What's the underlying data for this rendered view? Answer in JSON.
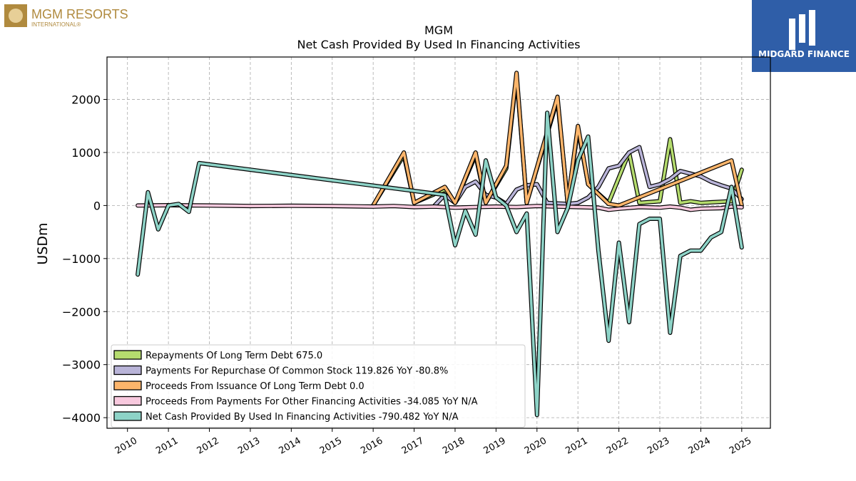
{
  "brand_left": {
    "name": "MGM RESORTS",
    "sub": "INTERNATIONAL®",
    "color": "#b08a3e"
  },
  "brand_right": {
    "name": "MIDGARD FINANCE",
    "bg": "#2f5ea8"
  },
  "chart_data": {
    "type": "line",
    "title": "MGM",
    "subtitle": "Net Cash Provided By Used In Financing Activities",
    "ylabel": "USDm",
    "xlabel": "",
    "xlim": [
      2009.5,
      2025.7
    ],
    "ylim": [
      -4200,
      2800
    ],
    "yticks": [
      -4000,
      -3000,
      -2000,
      -1000,
      0,
      1000,
      2000
    ],
    "ytick_labels": [
      "−4000",
      "−3000",
      "−2000",
      "−1000",
      "0",
      "1000",
      "2000"
    ],
    "xticks": [
      2010,
      2011,
      2012,
      2013,
      2014,
      2015,
      2016,
      2017,
      2018,
      2019,
      2020,
      2021,
      2022,
      2023,
      2024,
      2025
    ],
    "xtick_labels": [
      "2010",
      "2011",
      "2012",
      "2013",
      "2014",
      "2015",
      "2016",
      "2017",
      "2018",
      "2019",
      "2020",
      "2021",
      "2022",
      "2023",
      "2024",
      "2025"
    ],
    "grid": true,
    "legend_position": "bottom-left",
    "series": [
      {
        "name": "Repayments Of Long Term Debt",
        "legend_label": "Repayments Of Long Term Debt  675.0",
        "color": "#b5dc6e",
        "points": [
          [
            2016.0,
            0
          ],
          [
            2016.75,
            950
          ],
          [
            2017.0,
            50
          ],
          [
            2017.75,
            300
          ],
          [
            2018.0,
            50
          ],
          [
            2018.5,
            950
          ],
          [
            2018.75,
            50
          ],
          [
            2019.25,
            700
          ],
          [
            2019.5,
            2450
          ],
          [
            2019.75,
            50
          ],
          [
            2020.5,
            2000
          ],
          [
            2020.75,
            50
          ],
          [
            2021.0,
            1450
          ],
          [
            2021.25,
            400
          ],
          [
            2021.75,
            50
          ],
          [
            2022.25,
            1000
          ],
          [
            2022.5,
            50
          ],
          [
            2023.0,
            80
          ],
          [
            2023.25,
            1250
          ],
          [
            2023.5,
            50
          ],
          [
            2023.75,
            80
          ],
          [
            2024.0,
            50
          ],
          [
            2024.25,
            60
          ],
          [
            2024.75,
            80
          ],
          [
            2025.0,
            675
          ]
        ]
      },
      {
        "name": "Payments For Repurchase Of Common Stock",
        "legend_label": "Payments For Repurchase Of Common Stock  119.826 YoY -80.8%",
        "color": "#b9b4d8",
        "points": [
          [
            2017.5,
            0
          ],
          [
            2017.75,
            200
          ],
          [
            2018.0,
            50
          ],
          [
            2018.25,
            350
          ],
          [
            2018.5,
            450
          ],
          [
            2018.75,
            200
          ],
          [
            2019.0,
            150
          ],
          [
            2019.25,
            30
          ],
          [
            2019.5,
            300
          ],
          [
            2019.75,
            380
          ],
          [
            2020.0,
            400
          ],
          [
            2020.25,
            50
          ],
          [
            2020.75,
            30
          ],
          [
            2021.0,
            50
          ],
          [
            2021.25,
            150
          ],
          [
            2021.5,
            350
          ],
          [
            2021.75,
            700
          ],
          [
            2022.0,
            750
          ],
          [
            2022.25,
            1000
          ],
          [
            2022.5,
            1100
          ],
          [
            2022.75,
            350
          ],
          [
            2023.0,
            400
          ],
          [
            2023.25,
            500
          ],
          [
            2023.5,
            650
          ],
          [
            2023.75,
            600
          ],
          [
            2024.0,
            550
          ],
          [
            2024.25,
            450
          ],
          [
            2024.5,
            380
          ],
          [
            2024.75,
            320
          ],
          [
            2025.0,
            120
          ]
        ]
      },
      {
        "name": "Proceeds From Issuance Of Long Term Debt",
        "legend_label": "Proceeds From Issuance Of Long Term Debt  0.0",
        "color": "#fcb56b",
        "points": [
          [
            2016.0,
            0
          ],
          [
            2016.75,
            1000
          ],
          [
            2017.0,
            50
          ],
          [
            2017.75,
            350
          ],
          [
            2018.0,
            50
          ],
          [
            2018.5,
            1000
          ],
          [
            2018.75,
            50
          ],
          [
            2019.25,
            750
          ],
          [
            2019.5,
            2500
          ],
          [
            2019.75,
            50
          ],
          [
            2020.5,
            2050
          ],
          [
            2020.75,
            50
          ],
          [
            2021.0,
            1500
          ],
          [
            2021.25,
            400
          ],
          [
            2021.75,
            30
          ],
          [
            2022.0,
            0
          ],
          [
            2024.75,
            850
          ],
          [
            2025.0,
            0
          ]
        ]
      },
      {
        "name": "Proceeds From Payments For Other Financing Activities",
        "legend_label": "Proceeds From Payments For Other Financing Activities  -34.085 YoY N/A",
        "color": "#f8c9de",
        "points": [
          [
            2010.25,
            0
          ],
          [
            2011.0,
            5
          ],
          [
            2012.0,
            0
          ],
          [
            2013.0,
            -10
          ],
          [
            2014.0,
            -5
          ],
          [
            2015.0,
            -10
          ],
          [
            2016.0,
            -20
          ],
          [
            2016.5,
            -10
          ],
          [
            2017.0,
            -30
          ],
          [
            2017.5,
            -20
          ],
          [
            2018.0,
            -40
          ],
          [
            2018.5,
            -30
          ],
          [
            2019.0,
            -20
          ],
          [
            2019.5,
            -30
          ],
          [
            2020.0,
            -10
          ],
          [
            2020.5,
            -20
          ],
          [
            2021.0,
            -30
          ],
          [
            2021.5,
            -40
          ],
          [
            2021.75,
            -80
          ],
          [
            2022.0,
            -60
          ],
          [
            2022.5,
            -30
          ],
          [
            2023.0,
            -40
          ],
          [
            2023.25,
            -20
          ],
          [
            2023.5,
            -40
          ],
          [
            2023.75,
            -80
          ],
          [
            2024.0,
            -60
          ],
          [
            2024.5,
            -50
          ],
          [
            2024.75,
            -20
          ],
          [
            2025.0,
            -34
          ]
        ]
      },
      {
        "name": "Net Cash Provided By Used In Financing Activities",
        "legend_label": "Net Cash Provided By Used In Financing Activities  -790.482 YoY N/A",
        "color": "#8dd3c7",
        "points": [
          [
            2010.25,
            -1300
          ],
          [
            2010.5,
            250
          ],
          [
            2010.75,
            -450
          ],
          [
            2011.0,
            0
          ],
          [
            2011.25,
            30
          ],
          [
            2011.5,
            -120
          ],
          [
            2011.75,
            800
          ],
          [
            2017.75,
            200
          ],
          [
            2018.0,
            -750
          ],
          [
            2018.25,
            -100
          ],
          [
            2018.5,
            -550
          ],
          [
            2018.75,
            850
          ],
          [
            2019.0,
            150
          ],
          [
            2019.25,
            0
          ],
          [
            2019.5,
            -500
          ],
          [
            2019.75,
            -150
          ],
          [
            2020.0,
            -3950
          ],
          [
            2020.25,
            1750
          ],
          [
            2020.5,
            -500
          ],
          [
            2020.75,
            -50
          ],
          [
            2021.0,
            850
          ],
          [
            2021.25,
            1300
          ],
          [
            2021.5,
            -850
          ],
          [
            2021.75,
            -2550
          ],
          [
            2022.0,
            -700
          ],
          [
            2022.25,
            -2200
          ],
          [
            2022.5,
            -350
          ],
          [
            2022.75,
            -250
          ],
          [
            2023.0,
            -250
          ],
          [
            2023.25,
            -2400
          ],
          [
            2023.5,
            -950
          ],
          [
            2023.75,
            -850
          ],
          [
            2024.0,
            -850
          ],
          [
            2024.25,
            -600
          ],
          [
            2024.5,
            -500
          ],
          [
            2024.75,
            350
          ],
          [
            2025.0,
            -790
          ]
        ]
      }
    ]
  }
}
